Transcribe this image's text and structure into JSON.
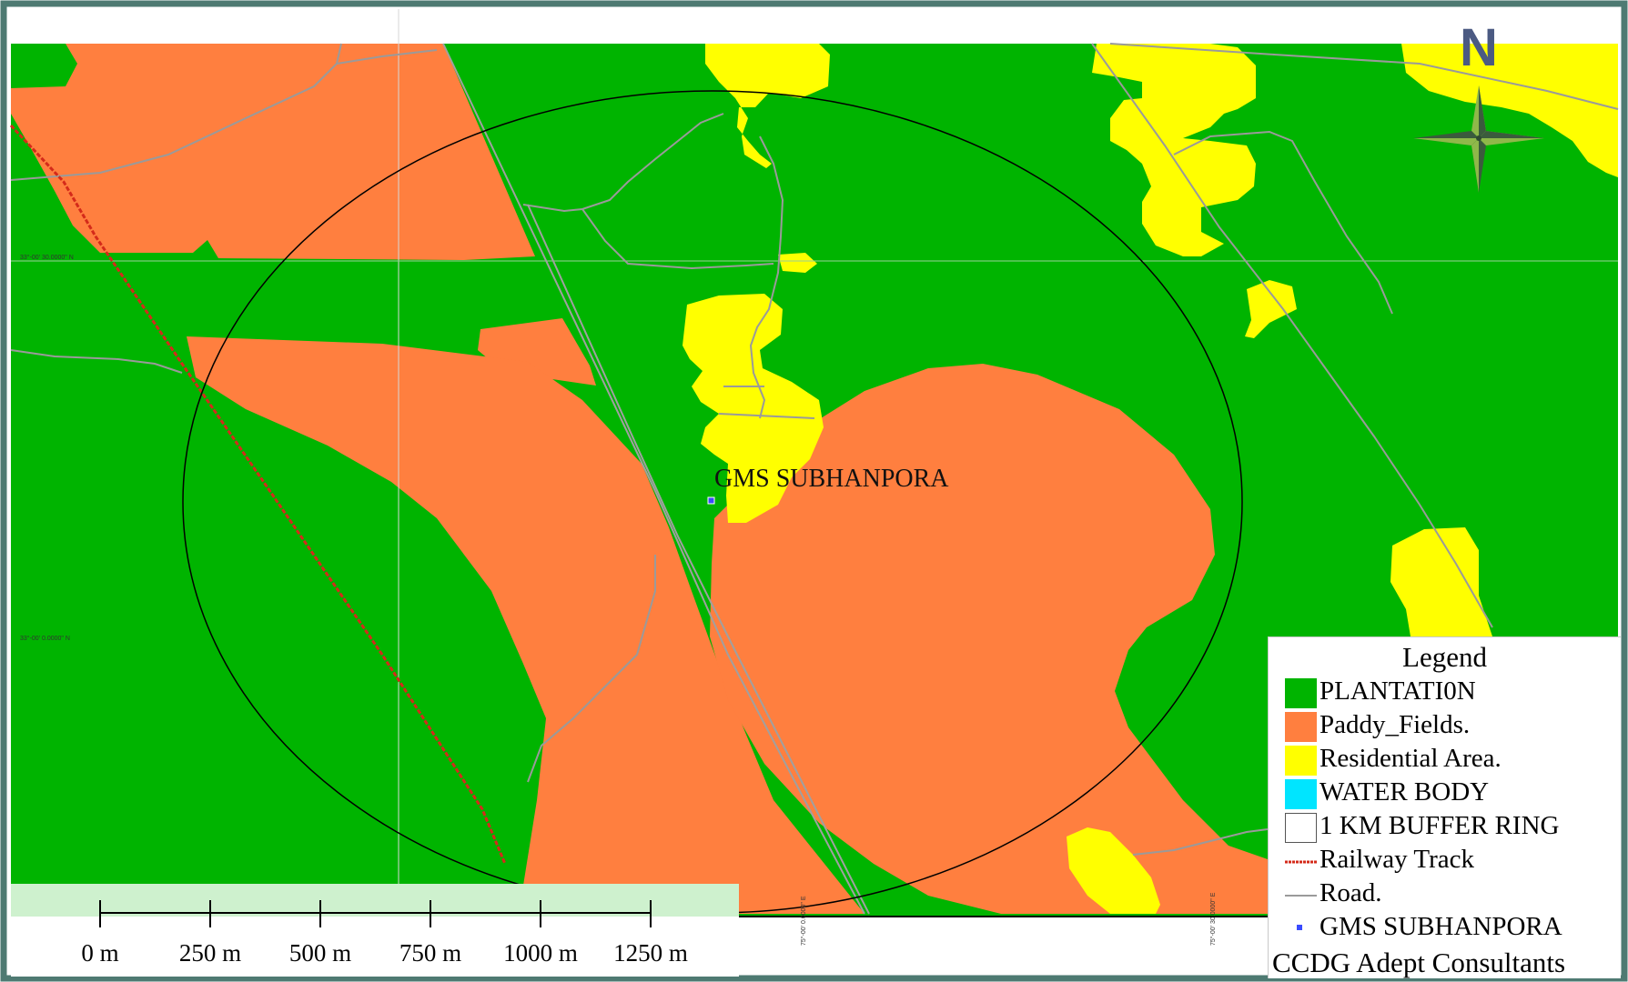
{
  "site": {
    "label": "GMS SUBHANPORA"
  },
  "north": {
    "letter": "N"
  },
  "legend": {
    "title": "Legend",
    "items": [
      {
        "label": "PLANTATI0N",
        "color": "#00b400",
        "kind": "fill"
      },
      {
        "label": "Paddy_Fields.",
        "color": "#ff7f3f",
        "kind": "fill"
      },
      {
        "label": "Residential Area.",
        "color": "#ffff00",
        "kind": "fill"
      },
      {
        "label": "WATER BODY",
        "color": "#00e5ff",
        "kind": "fill"
      },
      {
        "label": "1 KM BUFFER RING",
        "color": "#ffffff",
        "kind": "outline"
      },
      {
        "label": "Railway Track",
        "color": "#d42a1a",
        "kind": "dashed"
      },
      {
        "label": "Road.",
        "color": "#9a9a9a",
        "kind": "line"
      },
      {
        "label": "GMS SUBHANPORA",
        "color": "#3a4bff",
        "kind": "point"
      }
    ],
    "credit": "CCDG Adept Consultants"
  },
  "scalebar": {
    "ticks": [
      "0 m",
      "250 m",
      "500 m",
      "750 m",
      "1000 m",
      "1250 m"
    ]
  },
  "grid": {
    "lat_labels": [
      "33°-00' 30.0000\" N",
      "33°-00' 0.0000\" N"
    ],
    "lon_labels": [
      "75°-00' 0.0000\" E",
      "75°-00' 30.0000\" E"
    ]
  }
}
